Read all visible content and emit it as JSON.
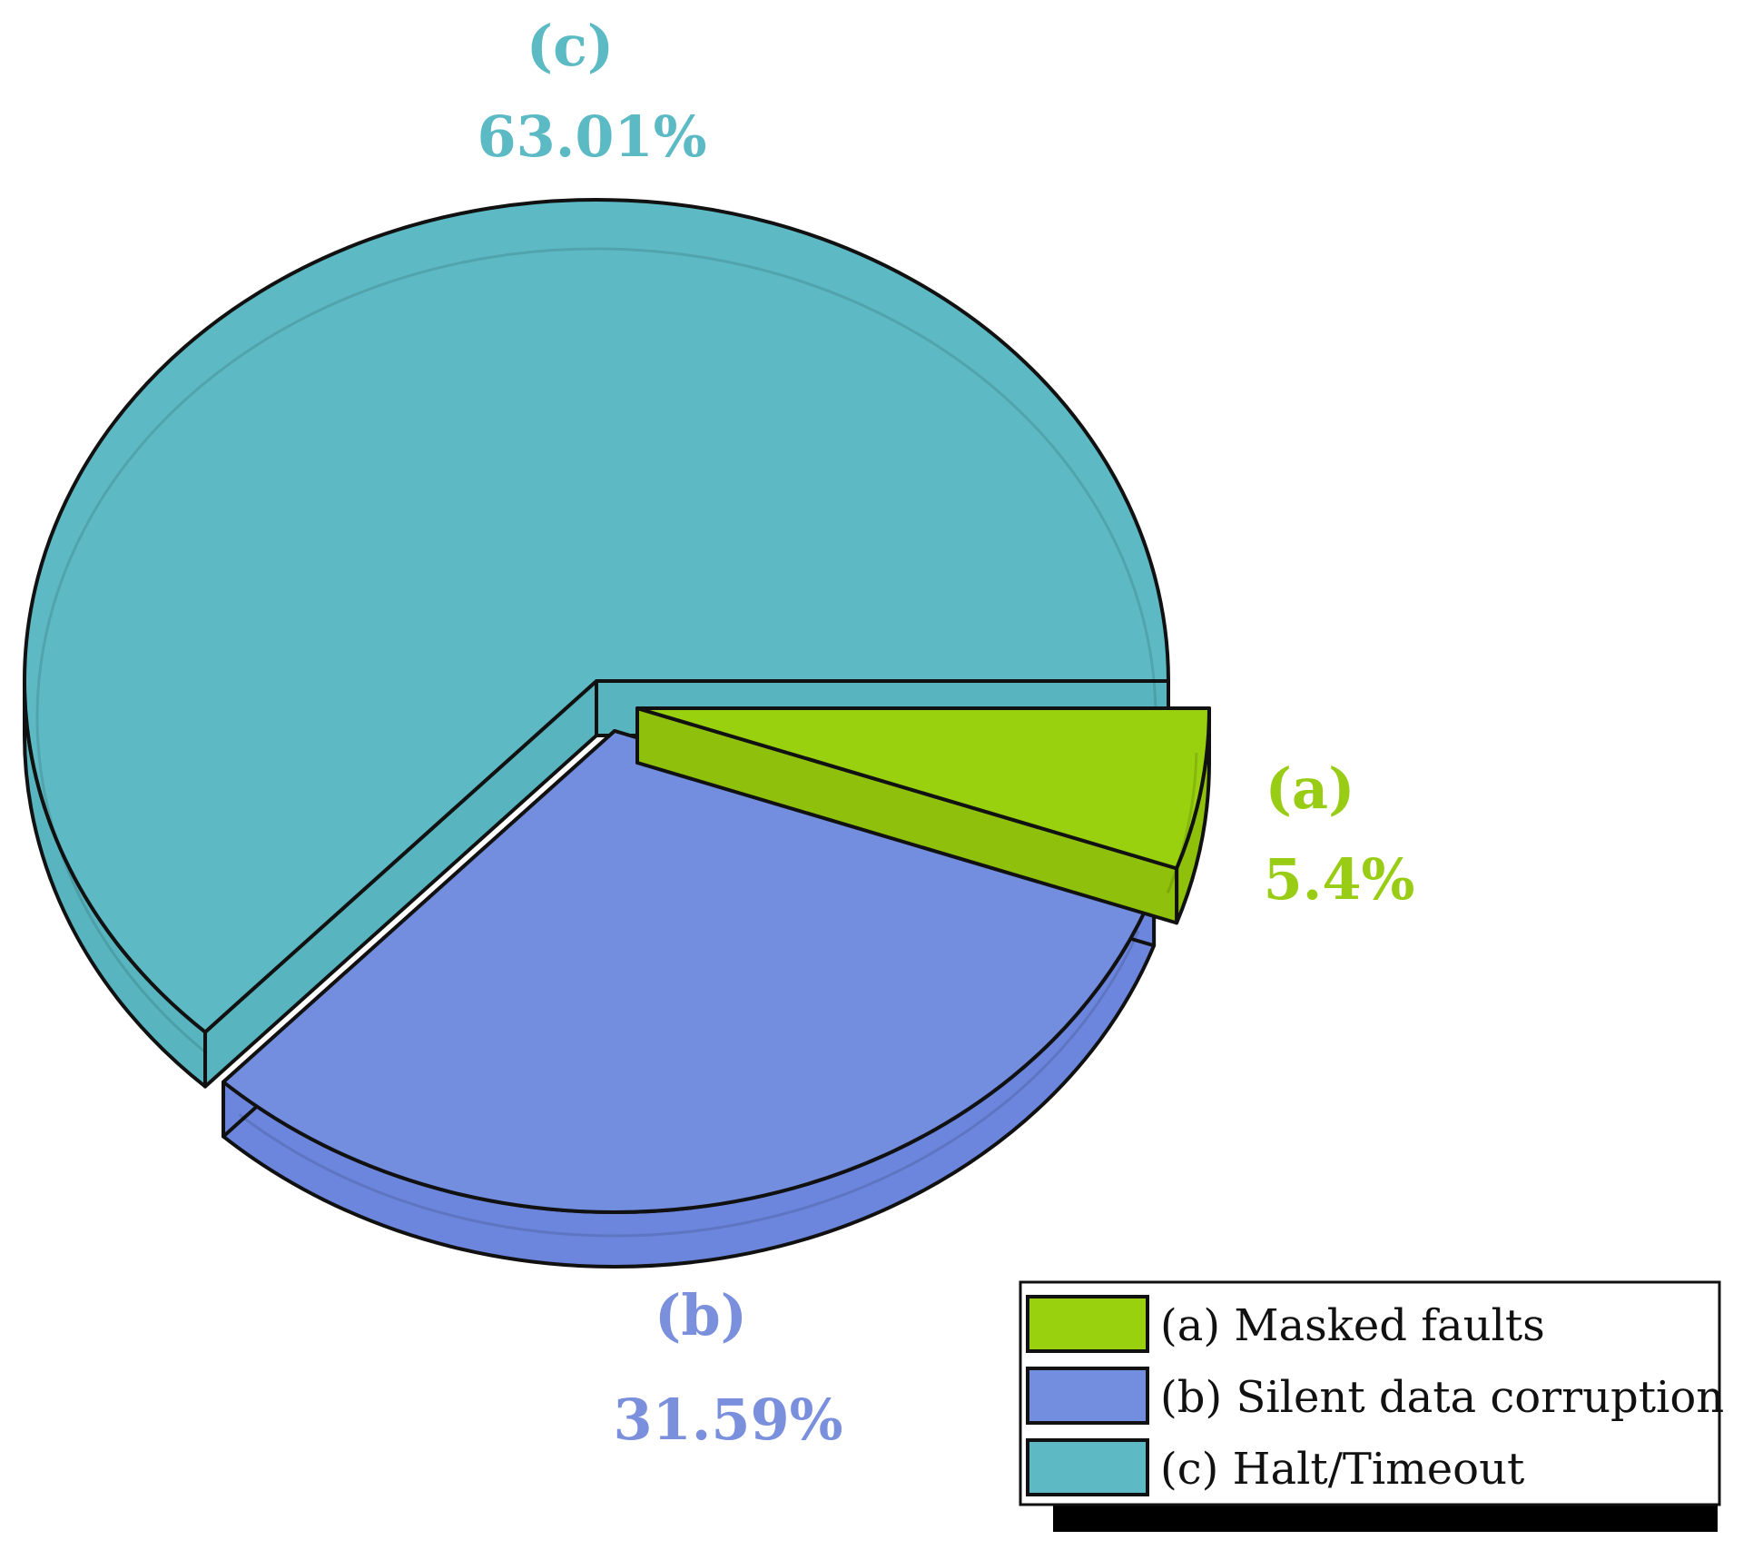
{
  "chart_data": {
    "type": "pie",
    "style": "3d-exploded",
    "slices": [
      {
        "id": "a",
        "letter": "(a)",
        "label": "(a) Masked faults",
        "value": 5.4,
        "value_label": "5.4%",
        "color": "#99d10f",
        "side_color": "#8ec00c",
        "label_color": "#99cc14"
      },
      {
        "id": "b",
        "letter": "(b)",
        "label": "(b) Silent data corruption",
        "value": 31.59,
        "value_label": "31.59%",
        "color": "#738ddf",
        "side_color": "#6b86dc",
        "label_color": "#7b90dc"
      },
      {
        "id": "c",
        "letter": "(c)",
        "label": "(c) Halt/Timeout",
        "value": 63.01,
        "value_label": "63.01%",
        "color": "#5dbac4",
        "side_color": "#58b5bf",
        "label_color": "#5bbac4"
      }
    ],
    "legend_position": "bottom-right"
  }
}
